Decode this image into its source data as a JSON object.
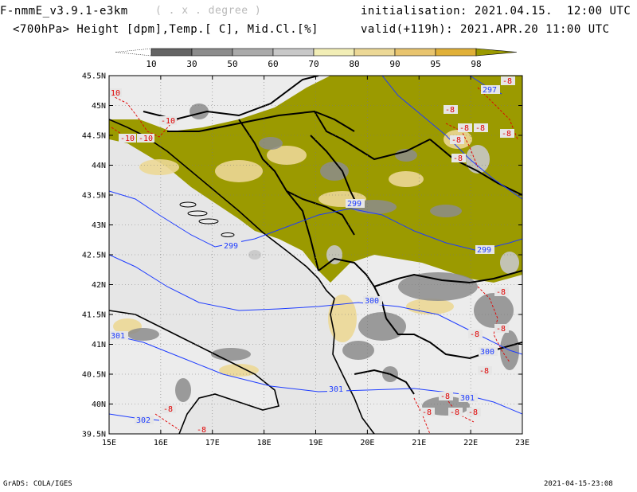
{
  "header": {
    "model": "F-nmmE_v3.9.1-e3km",
    "unit": "( . x . degree )",
    "fields": "<700hPa> Height [dpm],Temp.[ C], Mid.Cl.[%]",
    "init": "initialisation: 2021.04.15.  12:00 UTC",
    "valid": "valid(+119h): 2021.APR.20 11:00 UTC"
  },
  "colorbar": {
    "labels": [
      "10",
      "30",
      "50",
      "60",
      "70",
      "80",
      "90",
      "95",
      "98"
    ],
    "colors": [
      "#646464",
      "#8c8c8c",
      "#aaaaaa",
      "#c8c8c8",
      "#f2eeb6",
      "#ecd896",
      "#e8c46e",
      "#e0b038",
      "#9b9a00"
    ]
  },
  "axes": {
    "lat_labels": [
      "45.5N",
      "45N",
      "44.5N",
      "44N",
      "43.5N",
      "43N",
      "42.5N",
      "42N",
      "41.5N",
      "41N",
      "40.5N",
      "40N",
      "39.5N"
    ],
    "lon_labels": [
      "15E",
      "16E",
      "17E",
      "18E",
      "19E",
      "20E",
      "21E",
      "22E",
      "23E"
    ]
  },
  "contours": {
    "height_labels": [
      "297",
      "299",
      "299",
      "299",
      "300",
      "300",
      "301",
      "301",
      "301",
      "302"
    ],
    "temp_labels": [
      "10",
      "-10",
      "-10",
      "-10",
      "-8",
      "-8",
      "-8",
      "-8",
      "-8",
      "-8",
      "-8",
      "-8",
      "-8",
      "-8",
      "-8",
      "-8",
      "-8",
      "-8",
      "-8",
      "-8",
      "-8"
    ]
  },
  "footer": {
    "left": "GrADS: COLA/IGES",
    "right": "2021-04-15-23:08"
  },
  "colors": {
    "sea": "#e6e6e6",
    "cloud_high": "#9b9a00",
    "height_contour": "#1e3cff",
    "temp_contour": "#e00000"
  }
}
